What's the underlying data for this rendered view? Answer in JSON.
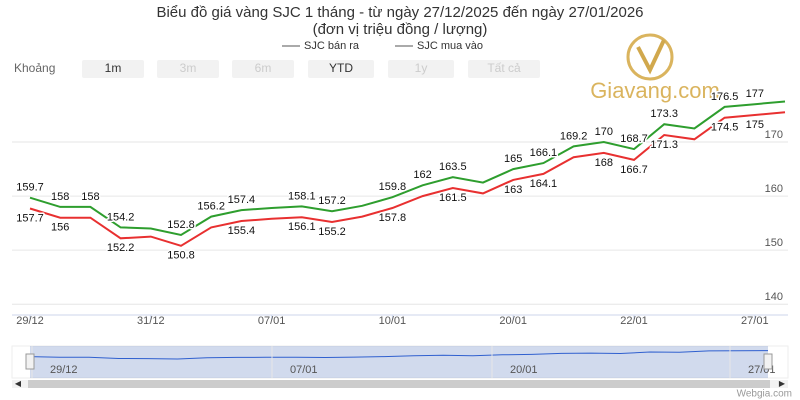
{
  "chart_data": {
    "type": "line",
    "title": "Biểu đồ giá vàng SJC 1 tháng - từ ngày 27/12/2025 đến ngày 27/01/2026",
    "subtitle": "(đơn vị triệu đồng / lượng)",
    "range_selector": {
      "label": "Khoảng",
      "buttons": [
        "1m",
        "3m",
        "6m",
        "YTD",
        "1y",
        "Tất cả"
      ]
    },
    "categories": [
      "29/12",
      null,
      null,
      null,
      "31/12",
      null,
      null,
      null,
      "07/01",
      null,
      null,
      null,
      "10/01",
      null,
      null,
      null,
      "20/01",
      null,
      null,
      null,
      "22/01",
      null,
      null,
      null,
      "27/01",
      null
    ],
    "series": [
      {
        "name": "SJC bán ra",
        "color": "#2e9e2e",
        "values": [
          159.7,
          158,
          158,
          154.2,
          154,
          152.8,
          156.2,
          157.4,
          157.8,
          158.1,
          157.2,
          158.2,
          159.8,
          162,
          163.5,
          162.5,
          165,
          166.1,
          169.2,
          170,
          168.7,
          173.3,
          172.5,
          176.5,
          177,
          177.5
        ],
        "value_labels": [
          "159.7",
          "158",
          "158",
          "154.2",
          null,
          "152.8",
          "156.2",
          "157.4",
          null,
          "158.1",
          "157.2",
          null,
          "159.8",
          "162",
          "163.5",
          null,
          "165",
          "166.1",
          "169.2",
          "170",
          "168.7",
          "173.3",
          null,
          "176.5",
          "177",
          null
        ]
      },
      {
        "name": "SJC mua vào",
        "color": "#e83030",
        "values": [
          157.7,
          156,
          156,
          152.2,
          152.5,
          150.8,
          154.2,
          155.4,
          155.8,
          156.1,
          155.2,
          156.2,
          157.8,
          160,
          161.5,
          160.5,
          163,
          164.1,
          167.2,
          168,
          166.7,
          171.3,
          170.5,
          174.5,
          175,
          175.5
        ],
        "value_labels": [
          "157.7",
          "156",
          null,
          "152.2",
          null,
          "150.8",
          null,
          "155.4",
          null,
          "156.1",
          "155.2",
          null,
          "157.8",
          null,
          "161.5",
          null,
          "163",
          "164.1",
          null,
          "168",
          "166.7",
          "171.3",
          null,
          "174.5",
          "175",
          null
        ]
      }
    ],
    "ylim": [
      138,
      180
    ],
    "yticks": [
      140,
      150,
      160,
      170
    ],
    "grid": true,
    "navigator": {
      "labels": [
        "29/12",
        "07/01",
        "20/01",
        "27/01"
      ]
    },
    "watermark": "Giavang.com",
    "credit": "Webgia.com"
  }
}
